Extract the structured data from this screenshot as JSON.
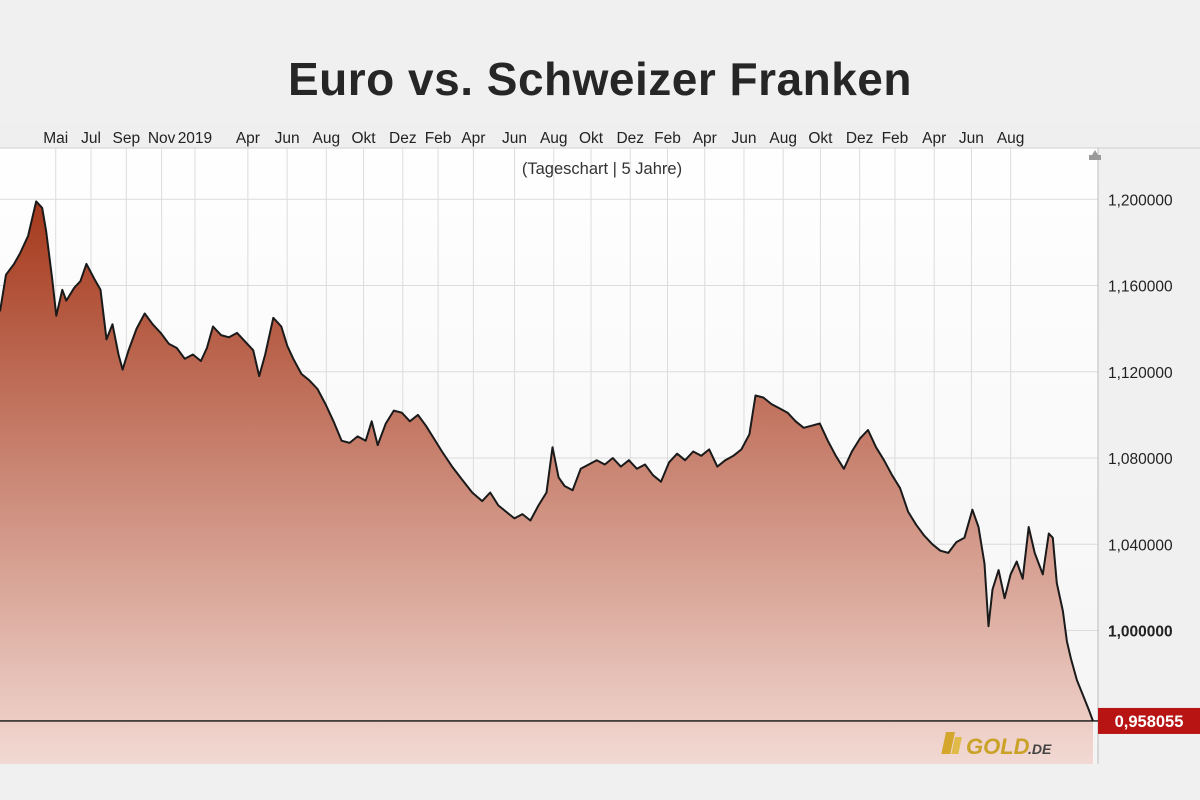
{
  "chart_data": {
    "type": "area",
    "title": "Euro vs. Schweizer Franken",
    "subtitle": "(Tageschart | 5 Jahre)",
    "month_labels": [
      {
        "label": "Mai",
        "t": 0.7
      },
      {
        "label": "Jul",
        "t": 2.5
      },
      {
        "label": "Sep",
        "t": 4.3
      },
      {
        "label": "Nov",
        "t": 6.1
      },
      {
        "label": "2019",
        "t": 7.8
      },
      {
        "label": "Apr",
        "t": 10.5
      },
      {
        "label": "Jun",
        "t": 12.5
      },
      {
        "label": "Aug",
        "t": 14.5
      },
      {
        "label": "Okt",
        "t": 16.4
      },
      {
        "label": "Dez",
        "t": 18.4
      },
      {
        "label": "Feb",
        "t": 20.2
      },
      {
        "label": "Apr",
        "t": 22.0
      },
      {
        "label": "Jun",
        "t": 24.1
      },
      {
        "label": "Aug",
        "t": 26.1
      },
      {
        "label": "Okt",
        "t": 28.0
      },
      {
        "label": "Dez",
        "t": 30.0
      },
      {
        "label": "Feb",
        "t": 31.9
      },
      {
        "label": "Apr",
        "t": 33.8
      },
      {
        "label": "Jun",
        "t": 35.8
      },
      {
        "label": "Aug",
        "t": 37.8
      },
      {
        "label": "Okt",
        "t": 39.7
      },
      {
        "label": "Dez",
        "t": 41.7
      },
      {
        "label": "Feb",
        "t": 43.5
      },
      {
        "label": "Apr",
        "t": 45.5
      },
      {
        "label": "Jun",
        "t": 47.4
      },
      {
        "label": "Aug",
        "t": 49.4
      }
    ],
    "x_range": [
      0,
      53.6
    ],
    "y_ticks": [
      "1,200000",
      "1,160000",
      "1,120000",
      "1,080000",
      "1,040000",
      "1,000000"
    ],
    "y_tick_values": [
      1.2,
      1.16,
      1.12,
      1.08,
      1.04,
      1.0
    ],
    "ylim": [
      0.94,
      1.22
    ],
    "series": [
      {
        "points": [
          [
            0,
            1.148
          ],
          [
            0.3,
            1.165
          ],
          [
            0.7,
            1.17
          ],
          [
            1.0,
            1.175
          ],
          [
            1.4,
            1.183
          ],
          [
            1.8,
            1.199
          ],
          [
            2.1,
            1.196
          ],
          [
            2.3,
            1.185
          ],
          [
            2.6,
            1.163
          ],
          [
            2.8,
            1.146
          ],
          [
            3.1,
            1.158
          ],
          [
            3.3,
            1.153
          ],
          [
            3.7,
            1.159
          ],
          [
            4.0,
            1.162
          ],
          [
            4.3,
            1.17
          ],
          [
            4.7,
            1.163
          ],
          [
            5.0,
            1.158
          ],
          [
            5.3,
            1.135
          ],
          [
            5.6,
            1.142
          ],
          [
            5.9,
            1.128
          ],
          [
            6.1,
            1.121
          ],
          [
            6.4,
            1.13
          ],
          [
            6.8,
            1.14
          ],
          [
            7.2,
            1.147
          ],
          [
            7.6,
            1.142
          ],
          [
            8.0,
            1.138
          ],
          [
            8.4,
            1.133
          ],
          [
            8.8,
            1.131
          ],
          [
            9.2,
            1.126
          ],
          [
            9.6,
            1.128
          ],
          [
            10.0,
            1.125
          ],
          [
            10.3,
            1.131
          ],
          [
            10.6,
            1.141
          ],
          [
            11.0,
            1.137
          ],
          [
            11.4,
            1.136
          ],
          [
            11.8,
            1.138
          ],
          [
            12.2,
            1.134
          ],
          [
            12.6,
            1.13
          ],
          [
            12.9,
            1.118
          ],
          [
            13.2,
            1.128
          ],
          [
            13.6,
            1.145
          ],
          [
            14.0,
            1.141
          ],
          [
            14.3,
            1.132
          ],
          [
            14.6,
            1.126
          ],
          [
            15.0,
            1.119
          ],
          [
            15.4,
            1.116
          ],
          [
            15.8,
            1.112
          ],
          [
            16.2,
            1.105
          ],
          [
            16.6,
            1.097
          ],
          [
            17.0,
            1.088
          ],
          [
            17.4,
            1.087
          ],
          [
            17.8,
            1.09
          ],
          [
            18.2,
            1.088
          ],
          [
            18.5,
            1.097
          ],
          [
            18.8,
            1.086
          ],
          [
            19.2,
            1.096
          ],
          [
            19.6,
            1.102
          ],
          [
            20.0,
            1.101
          ],
          [
            20.4,
            1.097
          ],
          [
            20.8,
            1.1
          ],
          [
            21.2,
            1.095
          ],
          [
            21.6,
            1.089
          ],
          [
            22.0,
            1.083
          ],
          [
            22.5,
            1.076
          ],
          [
            23.0,
            1.07
          ],
          [
            23.5,
            1.064
          ],
          [
            24.0,
            1.06
          ],
          [
            24.4,
            1.064
          ],
          [
            24.8,
            1.058
          ],
          [
            25.2,
            1.055
          ],
          [
            25.6,
            1.052
          ],
          [
            26.0,
            1.054
          ],
          [
            26.4,
            1.051
          ],
          [
            26.8,
            1.058
          ],
          [
            27.2,
            1.064
          ],
          [
            27.5,
            1.085
          ],
          [
            27.8,
            1.071
          ],
          [
            28.1,
            1.067
          ],
          [
            28.5,
            1.065
          ],
          [
            28.9,
            1.075
          ],
          [
            29.3,
            1.077
          ],
          [
            29.7,
            1.079
          ],
          [
            30.1,
            1.077
          ],
          [
            30.5,
            1.08
          ],
          [
            30.9,
            1.076
          ],
          [
            31.3,
            1.079
          ],
          [
            31.7,
            1.075
          ],
          [
            32.1,
            1.077
          ],
          [
            32.5,
            1.072
          ],
          [
            32.9,
            1.069
          ],
          [
            33.3,
            1.078
          ],
          [
            33.7,
            1.082
          ],
          [
            34.1,
            1.079
          ],
          [
            34.5,
            1.083
          ],
          [
            34.9,
            1.081
          ],
          [
            35.3,
            1.084
          ],
          [
            35.7,
            1.076
          ],
          [
            36.1,
            1.079
          ],
          [
            36.5,
            1.081
          ],
          [
            36.9,
            1.084
          ],
          [
            37.3,
            1.091
          ],
          [
            37.6,
            1.109
          ],
          [
            38.0,
            1.108
          ],
          [
            38.4,
            1.105
          ],
          [
            38.8,
            1.103
          ],
          [
            39.2,
            1.101
          ],
          [
            39.6,
            1.097
          ],
          [
            40.0,
            1.094
          ],
          [
            40.4,
            1.095
          ],
          [
            40.8,
            1.096
          ],
          [
            41.2,
            1.088
          ],
          [
            41.6,
            1.081
          ],
          [
            42.0,
            1.075
          ],
          [
            42.4,
            1.083
          ],
          [
            42.8,
            1.089
          ],
          [
            43.2,
            1.093
          ],
          [
            43.6,
            1.085
          ],
          [
            44.0,
            1.079
          ],
          [
            44.4,
            1.072
          ],
          [
            44.8,
            1.066
          ],
          [
            45.2,
            1.055
          ],
          [
            45.6,
            1.049
          ],
          [
            46.0,
            1.044
          ],
          [
            46.4,
            1.04
          ],
          [
            46.8,
            1.037
          ],
          [
            47.2,
            1.036
          ],
          [
            47.6,
            1.041
          ],
          [
            48.0,
            1.043
          ],
          [
            48.4,
            1.056
          ],
          [
            48.7,
            1.048
          ],
          [
            49.0,
            1.031
          ],
          [
            49.2,
            1.002
          ],
          [
            49.4,
            1.019
          ],
          [
            49.7,
            1.028
          ],
          [
            50.0,
            1.015
          ],
          [
            50.3,
            1.026
          ],
          [
            50.6,
            1.032
          ],
          [
            50.9,
            1.024
          ],
          [
            51.2,
            1.048
          ],
          [
            51.5,
            1.036
          ],
          [
            51.9,
            1.026
          ],
          [
            52.2,
            1.045
          ],
          [
            52.4,
            1.043
          ],
          [
            52.6,
            1.022
          ],
          [
            52.9,
            1.009
          ],
          [
            53.1,
            0.995
          ],
          [
            53.3,
            0.987
          ],
          [
            53.6,
            0.977
          ],
          [
            53.9,
            0.97
          ],
          [
            54.2,
            0.963
          ],
          [
            54.4,
            0.958
          ]
        ]
      }
    ],
    "last_value": "0,958055",
    "colors": {
      "line": "#1a1a1a",
      "fill_top": "#a5391c",
      "fill_bottom": "#f2d9d3",
      "last_label_bg": "#b81414",
      "grid": "#dcdcdc"
    },
    "grid": true
  },
  "logo": {
    "text": "GOLD",
    "suffix": ".DE"
  }
}
